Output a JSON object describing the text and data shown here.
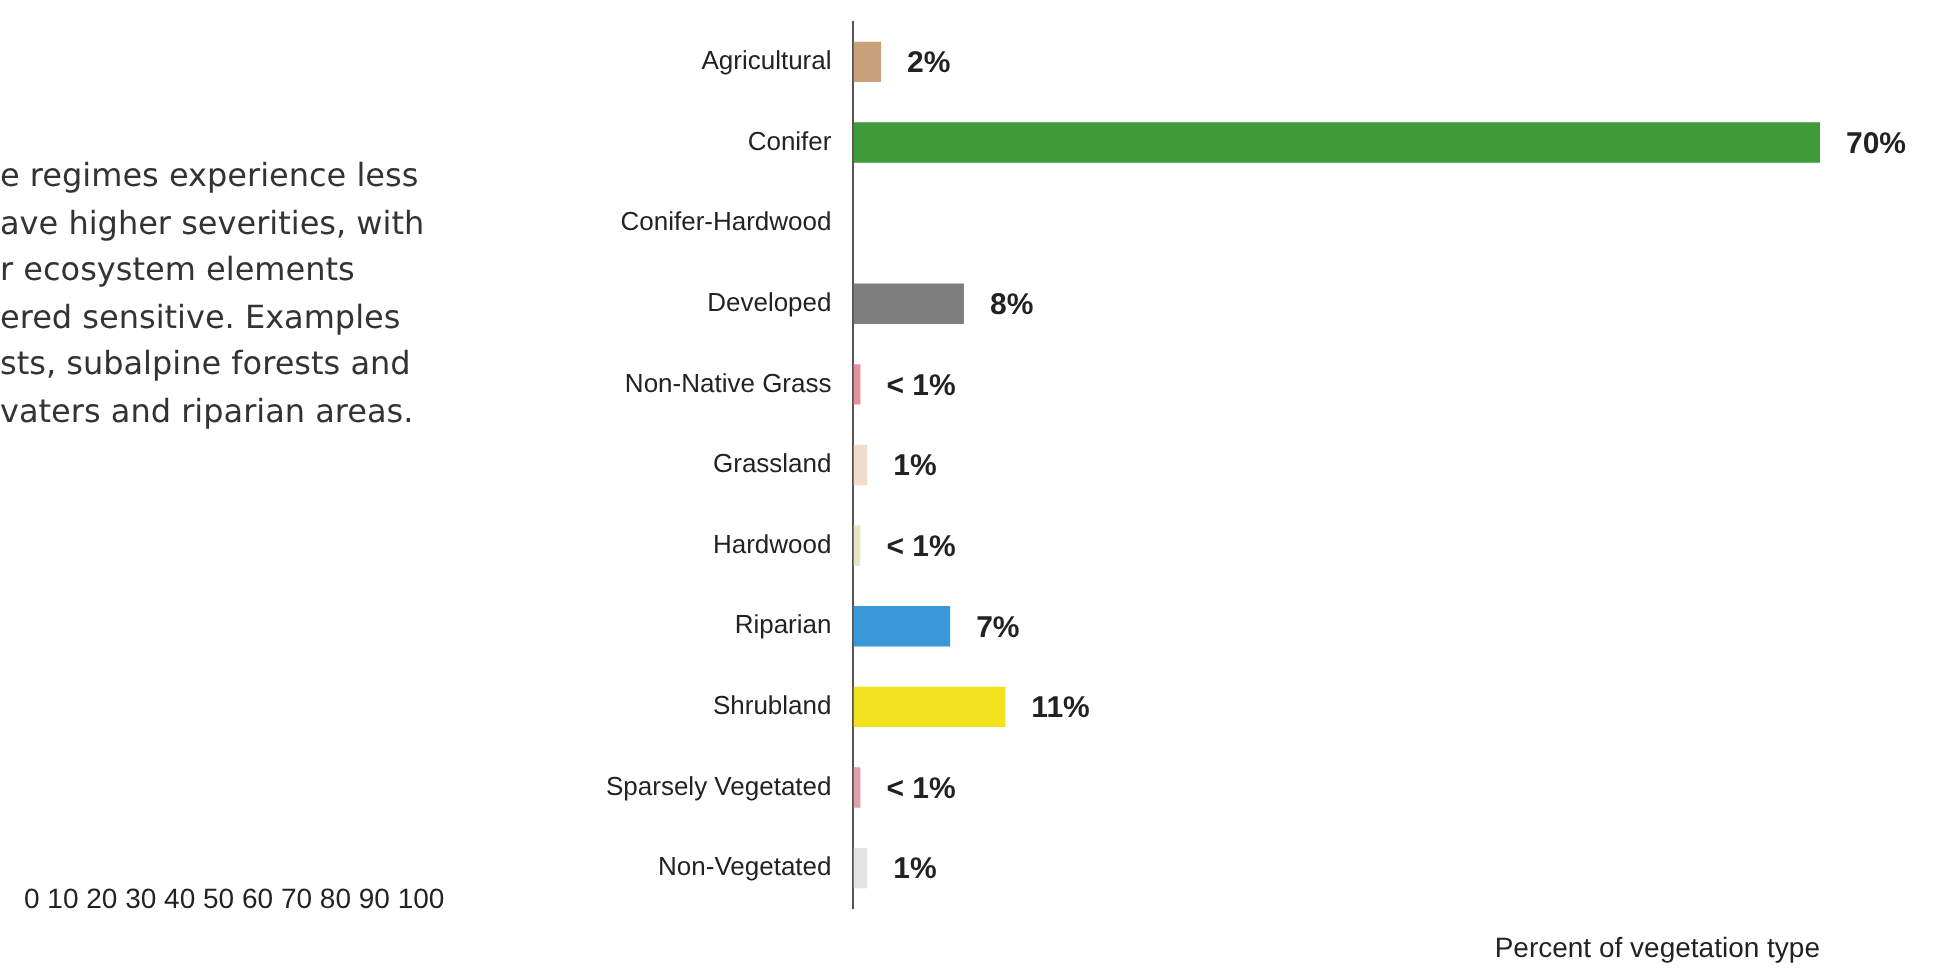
{
  "chart_data": {
    "type": "bar",
    "orientation": "horizontal",
    "xlabel": "Percent of vegetation type",
    "categories": [
      "Agricultural",
      "Conifer",
      "Conifer-Hardwood",
      "Developed",
      "Non-Native Grass",
      "Grassland",
      "Hardwood",
      "Riparian",
      "Shrubland",
      "Sparsely Vegetated",
      "Non-Vegetated"
    ],
    "values": [
      2,
      70,
      null,
      8,
      0.5,
      1,
      0.5,
      7,
      11,
      0.5,
      1
    ],
    "value_labels": [
      "2%",
      "70%",
      null,
      "8%",
      "< 1%",
      "1%",
      "< 1%",
      "7%",
      "11%",
      "< 1%",
      "1%"
    ],
    "colors": [
      "#c8a07a",
      "#3f9a3a",
      "#9aaa7a",
      "#7f7f7f",
      "#e8909a",
      "#f3dccb",
      "#e6e6c4",
      "#3a98d8",
      "#f2e21e",
      "#e0a0a8",
      "#e4e4e4"
    ],
    "annotations": [
      "e regimes experience less",
      "ave higher severities, with",
      "r ecosystem elements",
      "ered sensitive. Examples",
      "sts, subalpine forests and",
      "vaters and riparian areas.",
      "0 10 20 30 40 50 60 70 80 90 100"
    ],
    "legend": false,
    "grid": false
  }
}
